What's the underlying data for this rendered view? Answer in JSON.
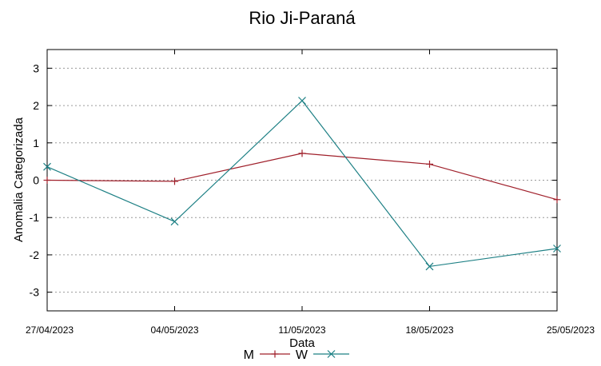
{
  "chart_data": {
    "type": "line",
    "title": "Rio Ji-Paraná",
    "xlabel": "Data",
    "ylabel": "Anomalia Categorizada",
    "categories": [
      "27/04/2023",
      "04/05/2023",
      "11/05/2023",
      "18/05/2023",
      "25/05/2023"
    ],
    "ylim": [
      -3.5,
      3.5
    ],
    "yticks": [
      3,
      2,
      1,
      0,
      -1,
      -2,
      -3
    ],
    "grid": true,
    "legend_position": "bottom",
    "series": [
      {
        "name": "M",
        "color": "#a0202b",
        "marker": "plus",
        "values": [
          0.0,
          -0.03,
          0.72,
          0.43,
          -0.52
        ]
      },
      {
        "name": "W",
        "color": "#1e8085",
        "marker": "cross",
        "values": [
          0.36,
          -1.11,
          2.13,
          -2.31,
          -1.83
        ]
      }
    ]
  }
}
